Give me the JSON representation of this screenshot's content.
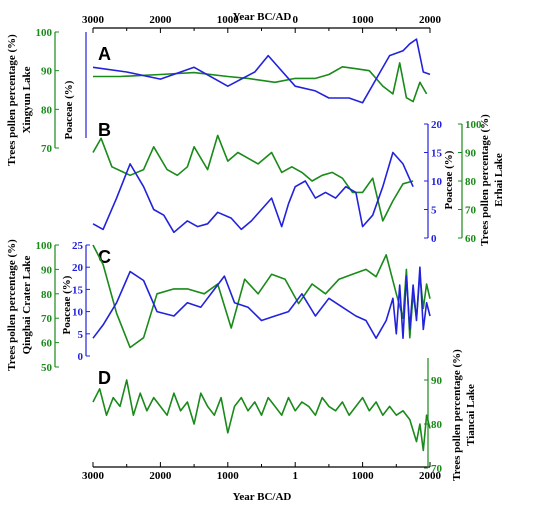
{
  "colors": {
    "trees": "#1a8a1a",
    "poaceae": "#2222dd",
    "axis": "#000000"
  },
  "x_axis": {
    "title_top": "Year BC/AD",
    "title_bottom": "Year BC/AD",
    "tick_values": [
      -3000,
      -2000,
      -1000,
      0,
      1000,
      2000
    ],
    "tick_labels": [
      "3000",
      "2000",
      "1000",
      "1",
      "1000",
      "2000"
    ],
    "top_tick_labels": [
      "3000",
      "2000",
      "1000",
      "0",
      "1000",
      "2000"
    ],
    "range": [
      -3000,
      2000
    ]
  },
  "chart_data": [
    {
      "type": "line",
      "panel": "A",
      "trees_axis_label": "Trees pollen percentage (%)",
      "lake": "Xingyun Lake",
      "poaceae_axis_label": "Poaceae (%)",
      "trees_ylim": [
        70,
        100
      ],
      "trees_ticks": [
        70,
        80,
        90,
        100
      ],
      "poaceae_ylim": [
        0,
        45
      ],
      "series": [
        {
          "name": "Trees pollen",
          "axis": "trees",
          "x": [
            -3000,
            -2600,
            -2000,
            -1500,
            -1000,
            -700,
            -300,
            0,
            300,
            500,
            700,
            900,
            1100,
            1300,
            1450,
            1550,
            1650,
            1750,
            1850,
            1950
          ],
          "values": [
            88.5,
            88.5,
            89,
            89.5,
            88.5,
            88,
            87,
            88,
            88,
            89,
            91,
            90.5,
            90,
            86,
            84,
            92,
            83,
            82,
            87,
            84
          ]
        },
        {
          "name": "Poaceae",
          "axis": "poaceae",
          "x": [
            -3000,
            -2500,
            -2000,
            -1500,
            -1000,
            -600,
            -400,
            0,
            300,
            500,
            800,
            1000,
            1200,
            1400,
            1600,
            1700,
            1800,
            1900,
            2000
          ],
          "values": [
            30,
            28,
            25,
            30,
            22,
            28,
            35,
            22,
            20,
            17,
            17,
            15,
            25,
            35,
            37,
            40,
            42,
            28,
            27
          ]
        }
      ]
    },
    {
      "type": "line",
      "panel": "B",
      "trees_axis_label": "Trees pollen percentage (%)",
      "lake": "Erhai Lake",
      "poaceae_axis_label": "Poaceae (%)",
      "trees_ylim": [
        60,
        100
      ],
      "trees_ticks": [
        60,
        70,
        80,
        90,
        100
      ],
      "poaceae_ylim": [
        0,
        20
      ],
      "poaceae_ticks": [
        0,
        5,
        10,
        15,
        20
      ],
      "series": [
        {
          "name": "Trees pollen",
          "axis": "trees",
          "x": [
            -3000,
            -2880,
            -2720,
            -2450,
            -2250,
            -2100,
            -1900,
            -1750,
            -1600,
            -1500,
            -1300,
            -1150,
            -1000,
            -850,
            -700,
            -550,
            -350,
            -200,
            -50,
            100,
            250,
            400,
            550,
            700,
            850,
            1000,
            1150,
            1300,
            1450,
            1600,
            1750
          ],
          "values": [
            90,
            95,
            85,
            82,
            84,
            92,
            84,
            82,
            85,
            92,
            84,
            96,
            87,
            90,
            88,
            86,
            90,
            83,
            85,
            83,
            80,
            82,
            83,
            81,
            76,
            76,
            81,
            66,
            73,
            79,
            80
          ]
        },
        {
          "name": "Poaceae",
          "axis": "poaceae",
          "x": [
            -3000,
            -2850,
            -2650,
            -2450,
            -2250,
            -2100,
            -1950,
            -1800,
            -1600,
            -1450,
            -1300,
            -1150,
            -950,
            -800,
            -650,
            -500,
            -350,
            -200,
            -100,
            0,
            150,
            300,
            450,
            600,
            750,
            900,
            1000,
            1150,
            1300,
            1450,
            1600,
            1750
          ],
          "values": [
            2.5,
            1.5,
            7,
            13,
            9,
            5,
            4,
            1,
            3,
            2,
            2.5,
            4.5,
            3.5,
            1.5,
            3,
            5,
            7,
            2,
            6,
            9,
            10,
            7,
            8,
            7,
            9,
            8,
            2,
            4,
            9,
            15,
            13,
            9
          ]
        }
      ]
    },
    {
      "type": "line",
      "panel": "C",
      "trees_axis_label": "Trees pollen percentage (%)",
      "lake": "Qinghai Crater Lake",
      "poaceae_axis_label": "Poaceae (%)",
      "trees_ylim": [
        50,
        100
      ],
      "trees_ticks": [
        50,
        60,
        70,
        80,
        90,
        100
      ],
      "poaceae_ylim": [
        0,
        25
      ],
      "poaceae_ticks": [
        0,
        5,
        10,
        15,
        20,
        25
      ],
      "series": [
        {
          "name": "Trees pollen",
          "axis": "trees",
          "x": [
            -3000,
            -2850,
            -2650,
            -2450,
            -2250,
            -2050,
            -1800,
            -1600,
            -1350,
            -1150,
            -950,
            -750,
            -550,
            -350,
            -150,
            50,
            250,
            450,
            650,
            850,
            1050,
            1200,
            1350,
            1500,
            1550,
            1600,
            1650,
            1700,
            1750,
            1800,
            1850,
            1900,
            1950,
            2000
          ],
          "values": [
            100,
            92,
            72,
            58,
            62,
            80,
            82,
            82,
            80,
            84,
            66,
            86,
            80,
            88,
            86,
            76,
            84,
            80,
            86,
            88,
            90,
            87,
            96,
            80,
            75,
            70,
            90,
            62,
            80,
            70,
            88,
            74,
            84,
            78
          ]
        },
        {
          "name": "Poaceae",
          "axis": "poaceae",
          "x": [
            -3000,
            -2850,
            -2650,
            -2450,
            -2250,
            -2050,
            -1800,
            -1600,
            -1400,
            -1200,
            -1050,
            -900,
            -700,
            -500,
            -300,
            -100,
            100,
            300,
            500,
            700,
            900,
            1050,
            1200,
            1350,
            1450,
            1500,
            1550,
            1600,
            1650,
            1700,
            1750,
            1800,
            1850,
            1900,
            1950,
            2000
          ],
          "values": [
            4,
            7,
            12,
            19,
            17,
            10,
            9,
            12,
            11,
            15,
            18,
            12,
            11,
            8,
            9,
            10,
            14,
            9,
            13,
            11,
            9,
            8,
            4,
            8,
            13,
            5,
            16,
            4,
            18,
            6,
            16,
            8,
            20,
            6,
            12,
            9
          ]
        }
      ]
    },
    {
      "type": "line",
      "panel": "D",
      "trees_axis_label": "Trees pollen percentage (%)",
      "lake": "Tiancai Lake",
      "trees_ylim": [
        70,
        95
      ],
      "trees_ticks": [
        70,
        80,
        90
      ],
      "series": [
        {
          "name": "Trees pollen",
          "axis": "trees",
          "x": [
            -3000,
            -2900,
            -2800,
            -2700,
            -2600,
            -2500,
            -2400,
            -2300,
            -2200,
            -2100,
            -2000,
            -1900,
            -1800,
            -1700,
            -1600,
            -1500,
            -1400,
            -1300,
            -1200,
            -1100,
            -1000,
            -900,
            -800,
            -700,
            -600,
            -500,
            -400,
            -300,
            -200,
            -100,
            0,
            100,
            200,
            300,
            400,
            500,
            600,
            700,
            800,
            900,
            1000,
            1100,
            1200,
            1300,
            1400,
            1500,
            1600,
            1700,
            1800,
            1850,
            1900,
            1950,
            2000
          ],
          "values": [
            85,
            88,
            82,
            86,
            84,
            90,
            82,
            87,
            83,
            86,
            84,
            82,
            87,
            83,
            85,
            80,
            87,
            84,
            82,
            86,
            78,
            84,
            86,
            83,
            85,
            82,
            86,
            84,
            82,
            86,
            83,
            85,
            84,
            82,
            86,
            84,
            83,
            85,
            82,
            84,
            86,
            83,
            85,
            82,
            84,
            82,
            83,
            81,
            76,
            80,
            74,
            82,
            79
          ]
        }
      ]
    }
  ]
}
